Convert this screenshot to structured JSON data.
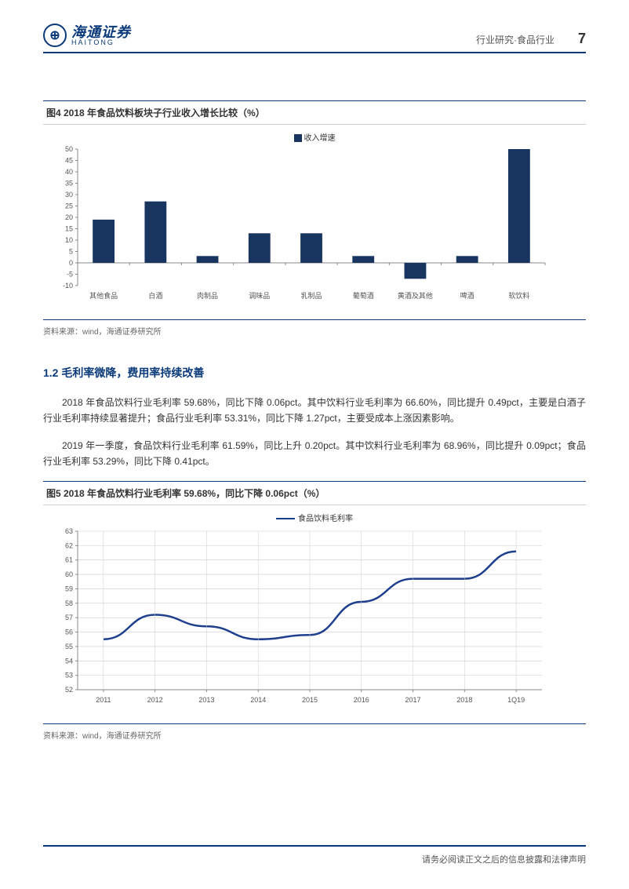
{
  "header": {
    "logo_cn": "海通证券",
    "logo_en": "HAITONG",
    "category": "行业研究·食品行业",
    "page_number": "7"
  },
  "chart4": {
    "type": "bar",
    "title": "图4  2018 年食品饮料板块子行业收入增长比较（%）",
    "legend_label": "收入增速",
    "categories": [
      "其他食品",
      "白酒",
      "肉制品",
      "调味品",
      "乳制品",
      "葡萄酒",
      "黄酒及其他",
      "啤酒",
      "软饮料"
    ],
    "values": [
      19,
      27,
      3,
      13,
      13,
      3,
      -7,
      3,
      50
    ],
    "bar_color": "#17355f",
    "ylim": [
      -10,
      50
    ],
    "ytick_step": 5,
    "background_color": "#ffffff",
    "axis_color": "#888888",
    "grid_color": "#dddddd",
    "label_fontsize": 9,
    "bar_width": 0.42
  },
  "source4": "资料来源：wind，海通证券研究所",
  "section_1_2": {
    "heading": "1.2 毛利率微降，费用率持续改善",
    "para1": "2018 年食品饮料行业毛利率 59.68%，同比下降 0.06pct。其中饮料行业毛利率为 66.60%，同比提升 0.49pct，主要是白酒子行业毛利率持续显著提升；食品行业毛利率 53.31%，同比下降 1.27pct，主要受成本上涨因素影响。",
    "para2": "2019 年一季度，食品饮料行业毛利率 61.59%，同比上升 0.20pct。其中饮料行业毛利率为 68.96%，同比提升 0.09pct；食品行业毛利率 53.29%，同比下降 0.41pct。"
  },
  "chart5": {
    "type": "line",
    "title": "图5  2018 年食品饮料行业毛利率 59.68%，同比下降 0.06pct（%）",
    "legend_label": "食品饮料毛利率",
    "x_labels": [
      "2011",
      "2012",
      "2013",
      "2014",
      "2015",
      "2016",
      "2017",
      "2018",
      "1Q19"
    ],
    "values": [
      55.5,
      57.2,
      56.4,
      55.5,
      55.8,
      58.1,
      59.7,
      59.7,
      61.6
    ],
    "line_color": "#1e3f8e",
    "line_width": 2.5,
    "ylim": [
      52,
      63
    ],
    "ytick_step": 1,
    "background_color": "#ffffff",
    "grid_color": "#cccccc",
    "axis_color": "#888888",
    "label_fontsize": 9
  },
  "source5": "资料来源：wind，海通证券研究所",
  "footer": "请务必阅读正文之后的信息披露和法律声明"
}
